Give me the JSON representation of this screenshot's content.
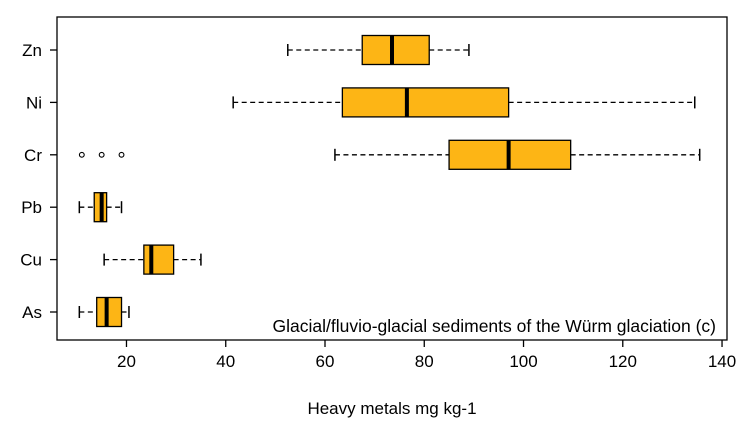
{
  "chart_data": {
    "type": "boxplot",
    "orientation": "horizontal",
    "title": "",
    "xlabel": "Heavy metals mg kg-1",
    "ylabel": "",
    "annotation": "Glacial/fluvio-glacial sediments of the Würm glaciation (c)",
    "xlim": [
      6,
      141
    ],
    "xticks": [
      20,
      40,
      60,
      80,
      100,
      120,
      140
    ],
    "grid": false,
    "legend": "none",
    "box_color": "#FDB515",
    "box_edge_color": "#000000",
    "categories": [
      "Zn",
      "Ni",
      "Cr",
      "Pb",
      "Cu",
      "As"
    ],
    "boxes": [
      {
        "label": "Zn",
        "whisker_low": 52.5,
        "q1": 67.5,
        "median": 73.5,
        "q3": 81,
        "whisker_high": 89,
        "outliers": []
      },
      {
        "label": "Ni",
        "whisker_low": 41.5,
        "q1": 63.5,
        "median": 76.5,
        "q3": 97,
        "whisker_high": 134.5,
        "outliers": []
      },
      {
        "label": "Cr",
        "whisker_low": 62,
        "q1": 85,
        "median": 97,
        "q3": 109.5,
        "whisker_high": 135.5,
        "outliers": [
          11,
          15,
          19
        ]
      },
      {
        "label": "Pb",
        "whisker_low": 10.5,
        "q1": 13.5,
        "median": 15,
        "q3": 16,
        "whisker_high": 19,
        "outliers": []
      },
      {
        "label": "Cu",
        "whisker_low": 15.5,
        "q1": 23.5,
        "median": 25,
        "q3": 29.5,
        "whisker_high": 35,
        "outliers": []
      },
      {
        "label": "As",
        "whisker_low": 10.5,
        "q1": 14,
        "median": 16,
        "q3": 19,
        "whisker_high": 20.5,
        "outliers": []
      }
    ]
  }
}
